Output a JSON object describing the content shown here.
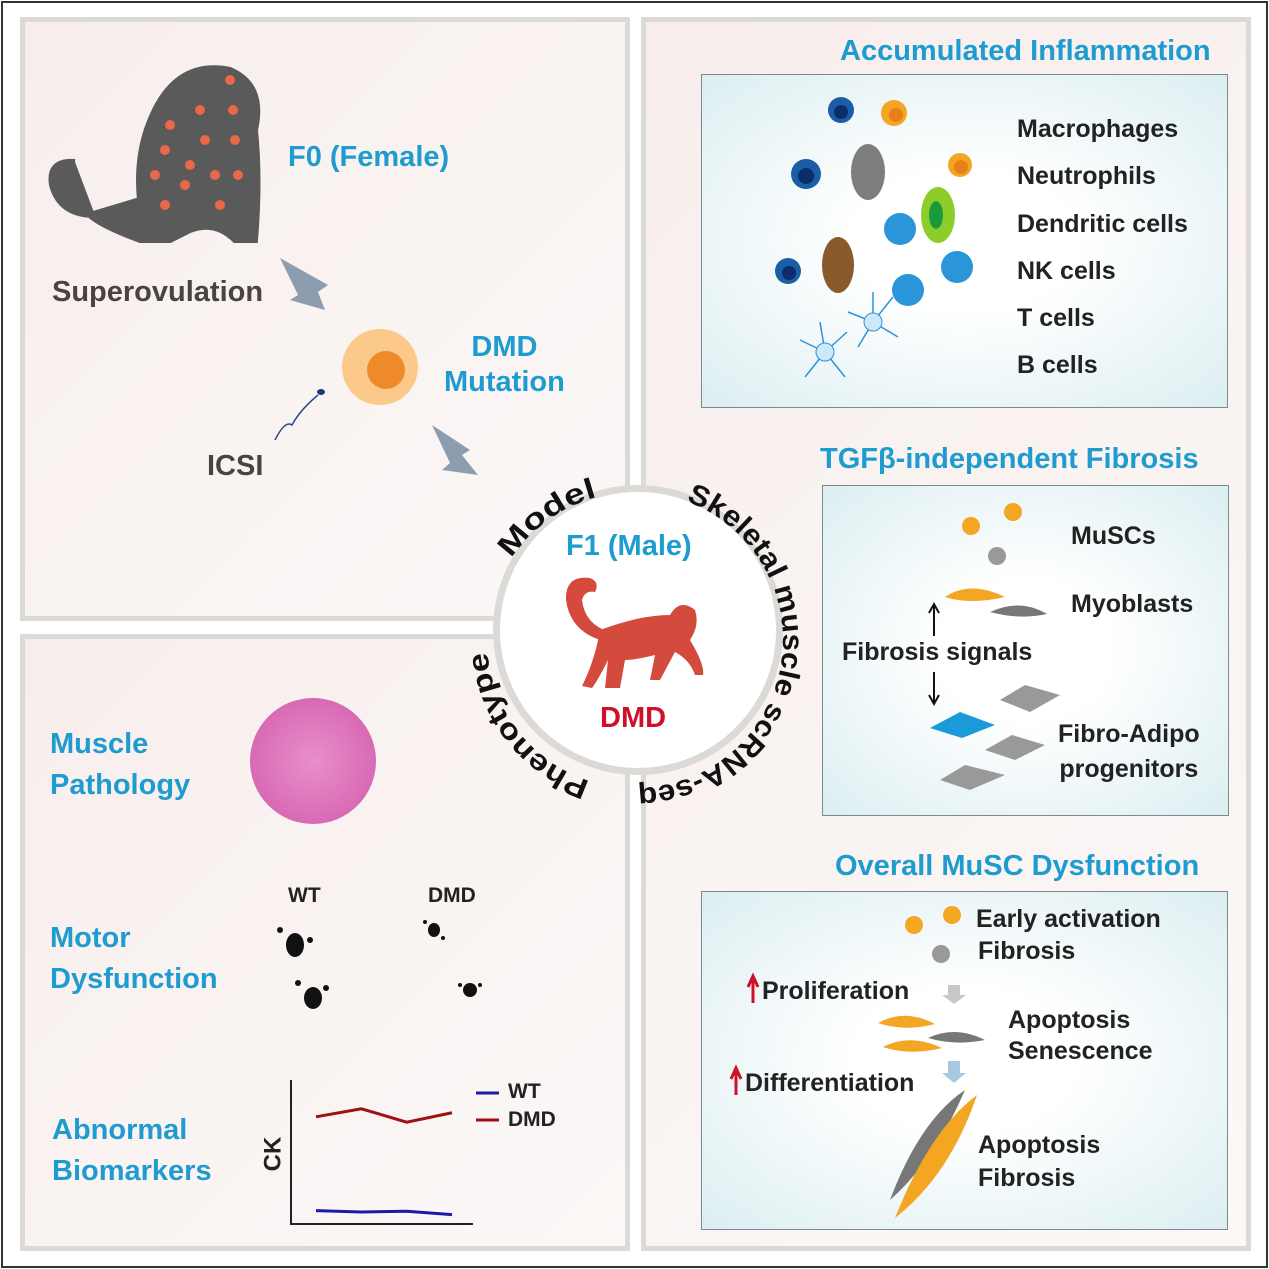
{
  "model_panel": {
    "f0": "F0 (Female)",
    "superovulation": "Superovulation",
    "dmd_mutation_line1": "DMD",
    "dmd_mutation_line2": "Mutation",
    "icsi": "ICSI"
  },
  "center": {
    "f1": "F1 (Male)",
    "dmd": "DMD",
    "arc_model": "Model",
    "arc_scrna": "Skeletal muscle scRNA-seq",
    "arc_phenotype": "Phenotype"
  },
  "phenotype_panel": {
    "muscle_pathology_line1": "Muscle",
    "muscle_pathology_line2": "Pathology",
    "motor_line1": "Motor",
    "motor_line2": "Dysfunction",
    "wt": "WT",
    "dmd": "DMD",
    "biomarkers_line1": "Abnormal",
    "biomarkers_line2": "Biomarkers",
    "ck_chart": {
      "ylabel": "CK",
      "legend": [
        "WT",
        "DMD"
      ],
      "series": [
        {
          "name": "WT",
          "color": "#1a1aa8",
          "values": [
            1.0,
            0.9,
            0.95,
            0.7
          ]
        },
        {
          "name": "DMD",
          "color": "#a01010",
          "values": [
            8.0,
            8.6,
            7.6,
            8.3
          ]
        }
      ]
    }
  },
  "inflammation": {
    "title": "Accumulated Inflammation",
    "cells": [
      "Macrophages",
      "Neutrophils",
      "Dendritic cells",
      "NK cells",
      "T cells",
      "B cells"
    ]
  },
  "fibrosis": {
    "title": "TGFβ-independent Fibrosis",
    "muscs": "MuSCs",
    "myoblasts": "Myoblasts",
    "signals": "Fibrosis signals",
    "fap_line1": "Fibro-Adipo",
    "fap_line2": "progenitors"
  },
  "musc": {
    "title": "Overall MuSC Dysfunction",
    "early": "Early activation",
    "fibrosis1": "Fibrosis",
    "proliferation": "Proliferation",
    "apoptosis1": "Apoptosis",
    "senescence": "Senescence",
    "differentiation": "Differentiation",
    "apoptosis2": "Apoptosis",
    "fibrosis2": "Fibrosis"
  },
  "colors": {
    "accent_blue": "#1f9ccf",
    "dmd_red": "#d0102a",
    "monkey_red": "#d44a3c"
  }
}
